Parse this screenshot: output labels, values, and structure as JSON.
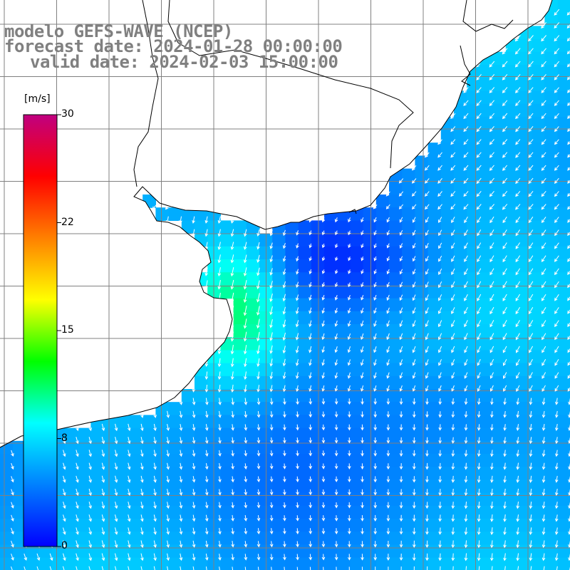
{
  "title": {
    "line1": "modelo GEFS-WAVE (NCEP)",
    "line2": "forecast date: 2024-01-28 00:00:00",
    "line3": "valid date: 2024-02-03 15:00:00"
  },
  "colorbar": {
    "unit": "[m/s]",
    "min": 0,
    "max": 30,
    "ticks": [
      {
        "label": "30",
        "value": 30
      },
      {
        "label": "22",
        "value": 22.5
      },
      {
        "label": "15",
        "value": 15
      },
      {
        "label": "8",
        "value": 7.5
      },
      {
        "label": "0",
        "value": 0
      }
    ],
    "colors": [
      "#0000ff",
      "#0080ff",
      "#00ffff",
      "#00ff00",
      "#ffff00",
      "#ff8000",
      "#ff0000",
      "#c00080"
    ]
  },
  "map": {
    "variable": "wind speed and direction",
    "grid": "on",
    "land_color": "#ffffff",
    "coastline_color": "#000000"
  }
}
